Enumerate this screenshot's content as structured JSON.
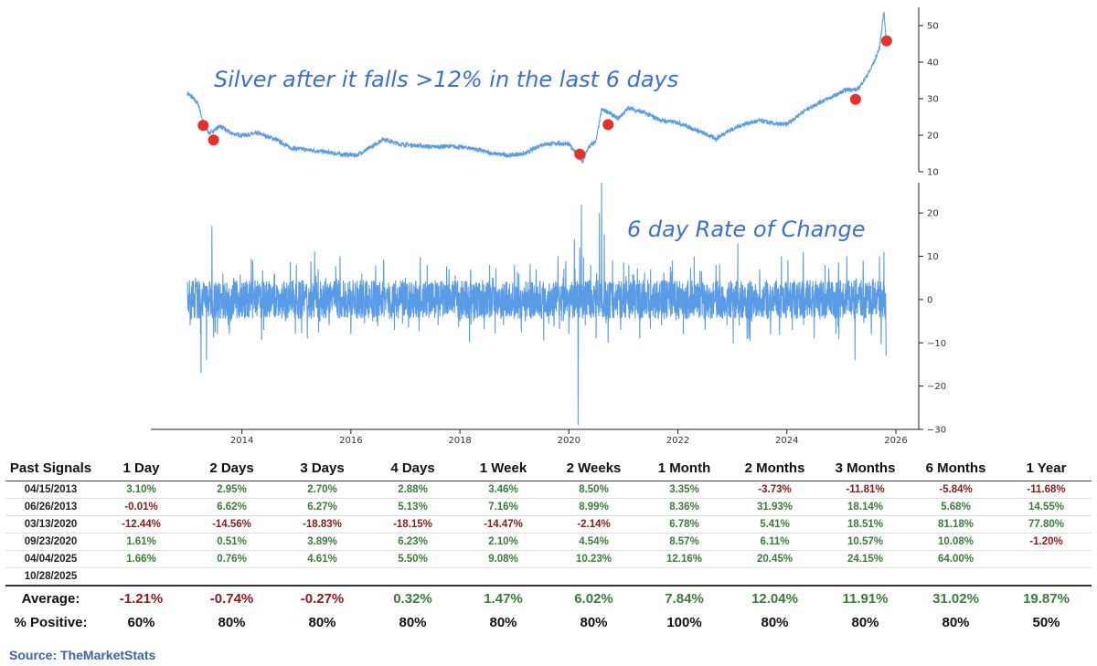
{
  "chart_data": [
    {
      "type": "line",
      "title": "Silver after it falls >12% in the last 6 days",
      "xlabel": "",
      "ylabel": "",
      "xlim": [
        2013.0,
        2026.0
      ],
      "ylim": [
        10,
        55
      ],
      "y_ticks": [
        "10",
        "20",
        "30",
        "40",
        "50"
      ],
      "x_ticks": [
        "2014",
        "2016",
        "2018",
        "2020",
        "2022",
        "2024",
        "2026"
      ],
      "series": [
        {
          "x": [
            2013.0,
            2013.08,
            2013.2,
            2013.3,
            2013.4,
            2013.5,
            2013.6,
            2013.8,
            2014.0,
            2014.3,
            2014.6,
            2014.9,
            2015.2,
            2015.5,
            2015.8,
            2016.1,
            2016.4,
            2016.6,
            2016.9,
            2017.2,
            2017.5,
            2017.8,
            2018.2,
            2018.6,
            2018.9,
            2019.2,
            2019.5,
            2019.8,
            2020.0,
            2020.15,
            2020.25,
            2020.35,
            2020.5,
            2020.6,
            2020.7,
            2020.9,
            2021.1,
            2021.4,
            2021.7,
            2022.0,
            2022.4,
            2022.7,
            2022.9,
            2023.2,
            2023.5,
            2023.8,
            2024.0,
            2024.3,
            2024.6,
            2024.9,
            2025.1,
            2025.3,
            2025.5,
            2025.6,
            2025.7,
            2025.78,
            2025.82
          ],
          "values": [
            31.5,
            30.5,
            28.5,
            23.0,
            20.5,
            21.5,
            22.5,
            20.5,
            20.0,
            20.5,
            19.0,
            16.5,
            16.0,
            15.5,
            14.8,
            14.5,
            17.0,
            19.0,
            17.5,
            17.2,
            16.8,
            17.0,
            16.5,
            15.0,
            14.5,
            15.0,
            17.5,
            17.8,
            17.5,
            15.0,
            12.5,
            16.5,
            18.5,
            27.0,
            26.5,
            24.5,
            27.5,
            26.0,
            24.0,
            23.5,
            21.0,
            19.0,
            21.0,
            23.0,
            24.0,
            23.0,
            23.0,
            26.5,
            29.0,
            31.0,
            32.5,
            32.5,
            37.0,
            40.0,
            44.0,
            54.0,
            46.0
          ]
        }
      ],
      "signals": [
        {
          "x": 2013.29,
          "y": 22.7
        },
        {
          "x": 2013.48,
          "y": 18.7
        },
        {
          "x": 2020.2,
          "y": 14.8
        },
        {
          "x": 2020.72,
          "y": 22.9
        },
        {
          "x": 2025.26,
          "y": 29.8
        },
        {
          "x": 2025.83,
          "y": 45.8
        }
      ]
    },
    {
      "type": "line",
      "title": "6 day Rate of Change",
      "xlabel": "",
      "ylabel": "",
      "xlim": [
        2013.0,
        2026.0
      ],
      "ylim": [
        -30,
        27
      ],
      "y_ticks": [
        "20",
        "10",
        "0",
        "−10",
        "−20",
        "−30"
      ],
      "series": [
        {
          "x": [
            2013.0,
            2013.05,
            2013.15,
            2013.25,
            2013.3,
            2013.35,
            2013.45,
            2013.55,
            2013.65,
            2013.75,
            2013.85,
            2014.0,
            2014.2,
            2014.4,
            2014.6,
            2014.8,
            2015.0,
            2015.2,
            2015.4,
            2015.6,
            2015.8,
            2016.0,
            2016.2,
            2016.4,
            2016.6,
            2016.8,
            2017.0,
            2017.2,
            2017.4,
            2017.6,
            2017.8,
            2018.0,
            2018.2,
            2018.4,
            2018.6,
            2018.8,
            2019.0,
            2019.2,
            2019.4,
            2019.6,
            2019.8,
            2020.0,
            2020.1,
            2020.17,
            2020.2,
            2020.23,
            2020.3,
            2020.4,
            2020.5,
            2020.56,
            2020.6,
            2020.65,
            2020.72,
            2020.8,
            2020.95,
            2021.1,
            2021.3,
            2021.5,
            2021.7,
            2021.9,
            2022.1,
            2022.3,
            2022.5,
            2022.7,
            2022.9,
            2023.1,
            2023.3,
            2023.5,
            2023.7,
            2023.9,
            2024.1,
            2024.3,
            2024.5,
            2024.7,
            2024.9,
            2025.1,
            2025.25,
            2025.4,
            2025.55,
            2025.7,
            2025.78,
            2025.82
          ],
          "values": [
            4,
            -6,
            5,
            -17,
            3,
            -14,
            17,
            -8,
            6,
            -6,
            5,
            -4,
            9,
            -7,
            6,
            -5,
            8,
            -9,
            7,
            -6,
            10,
            -8,
            6,
            -5,
            9,
            -7,
            5,
            -4,
            8,
            -6,
            7,
            -5,
            6,
            -4,
            5,
            -6,
            8,
            -5,
            7,
            -4,
            10,
            -8,
            14,
            -29,
            12,
            22,
            -6,
            8,
            -9,
            20,
            27,
            15,
            -10,
            9,
            -7,
            8,
            -9,
            7,
            -6,
            9,
            -8,
            10,
            -7,
            8,
            -6,
            13,
            -9,
            7,
            -8,
            10,
            -7,
            11,
            -9,
            8,
            -8,
            10,
            -14,
            9,
            -8,
            10,
            11,
            -13
          ]
        }
      ]
    }
  ],
  "table": {
    "header": [
      "Past Signals",
      "1 Day",
      "2 Days",
      "3 Days",
      "4 Days",
      "1 Week",
      "2 Weeks",
      "1 Month",
      "2 Months",
      "3 Months",
      "6 Months",
      "1 Year"
    ],
    "rows": [
      {
        "date": "04/15/2013",
        "values": [
          "3.10%",
          "2.95%",
          "2.70%",
          "2.88%",
          "3.46%",
          "8.50%",
          "3.35%",
          "-3.73%",
          "-11.81%",
          "-5.84%",
          "-11.68%"
        ]
      },
      {
        "date": "06/26/2013",
        "values": [
          "-0.01%",
          "6.62%",
          "6.27%",
          "5.13%",
          "7.16%",
          "8.99%",
          "8.36%",
          "31.93%",
          "18.14%",
          "5.68%",
          "14.55%"
        ]
      },
      {
        "date": "03/13/2020",
        "values": [
          "-12.44%",
          "-14.56%",
          "-18.83%",
          "-18.15%",
          "-14.47%",
          "-2.14%",
          "6.78%",
          "5.41%",
          "18.51%",
          "81.18%",
          "77.80%"
        ]
      },
      {
        "date": "09/23/2020",
        "values": [
          "1.61%",
          "0.51%",
          "3.89%",
          "6.23%",
          "2.10%",
          "4.54%",
          "8.57%",
          "6.11%",
          "10.57%",
          "10.08%",
          "-1.20%"
        ]
      },
      {
        "date": "04/04/2025",
        "values": [
          "1.66%",
          "0.76%",
          "4.61%",
          "5.50%",
          "9.08%",
          "10.23%",
          "12.16%",
          "20.45%",
          "24.15%",
          "64.00%",
          ""
        ]
      },
      {
        "date": "10/28/2025",
        "values": [
          "",
          "",
          "",
          "",
          "",
          "",
          "",
          "",
          "",
          "",
          ""
        ]
      }
    ],
    "average_label": "Average:",
    "average": [
      "-1.21%",
      "-0.74%",
      "-0.27%",
      "0.32%",
      "1.47%",
      "6.02%",
      "7.84%",
      "12.04%",
      "11.91%",
      "31.02%",
      "19.87%"
    ],
    "positive_label": "% Positive:",
    "positive": [
      "60%",
      "80%",
      "80%",
      "80%",
      "80%",
      "80%",
      "100%",
      "80%",
      "80%",
      "80%",
      "50%"
    ]
  },
  "source": "Source: TheMarketStats",
  "colors": {
    "line": "#5a9be8",
    "signal": "#e8302a",
    "title": "#3b6fd8",
    "positive": "#3a7d3a",
    "negative": "#8b1a1a",
    "source": "#3b63a8"
  }
}
